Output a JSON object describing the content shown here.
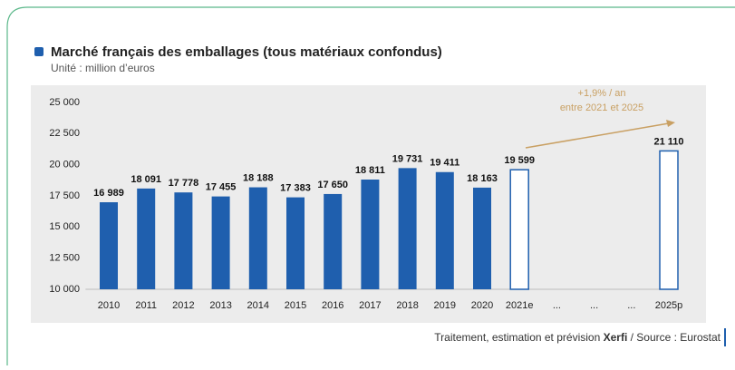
{
  "chart_data": {
    "type": "bar",
    "title": "Marché français des emballages (tous matériaux confondus)",
    "subtitle": "Unité : million d’euros",
    "categories": [
      "2010",
      "2011",
      "2012",
      "2013",
      "2014",
      "2015",
      "2016",
      "2017",
      "2018",
      "2019",
      "2020",
      "2021e",
      "...",
      "...",
      "...",
      "2025p"
    ],
    "values": [
      16989,
      18091,
      17778,
      17455,
      18188,
      17383,
      17650,
      18811,
      19731,
      19411,
      18163,
      19599,
      null,
      null,
      null,
      21110
    ],
    "value_labels": [
      "16 989",
      "18 091",
      "17 778",
      "17 455",
      "18 188",
      "17 383",
      "17 650",
      "18 811",
      "19 731",
      "19 411",
      "18 163",
      "19 599",
      null,
      null,
      null,
      "21 110"
    ],
    "color": "#1f5fae",
    "fill_colors": [
      "#1f5fae",
      "#1f5fae",
      "#1f5fae",
      "#1f5fae",
      "#1f5fae",
      "#1f5fae",
      "#1f5fae",
      "#1f5fae",
      "#1f5fae",
      "#1f5fae",
      "#1f5fae",
      "#ffffff",
      null,
      null,
      null,
      "#ffffff"
    ],
    "ylim": [
      10000,
      25000
    ],
    "yticks": [
      {
        "value": 10000,
        "label": "10 000"
      },
      {
        "value": 12500,
        "label": "12 500"
      },
      {
        "value": 15000,
        "label": "15 000"
      },
      {
        "value": 17500,
        "label": "17 500"
      },
      {
        "value": 20000,
        "label": "20 000"
      },
      {
        "value": 22500,
        "label": "22 500"
      },
      {
        "value": 25000,
        "label": "25 000"
      }
    ],
    "grid": false,
    "annotation": [
      "+1,9% / an",
      "entre 2021 et 2025"
    ],
    "annotation_color": "#c9a063",
    "source": [
      "Traitement, estimation et prévision ",
      "Xerfi",
      " / Source : Eurostat"
    ]
  }
}
